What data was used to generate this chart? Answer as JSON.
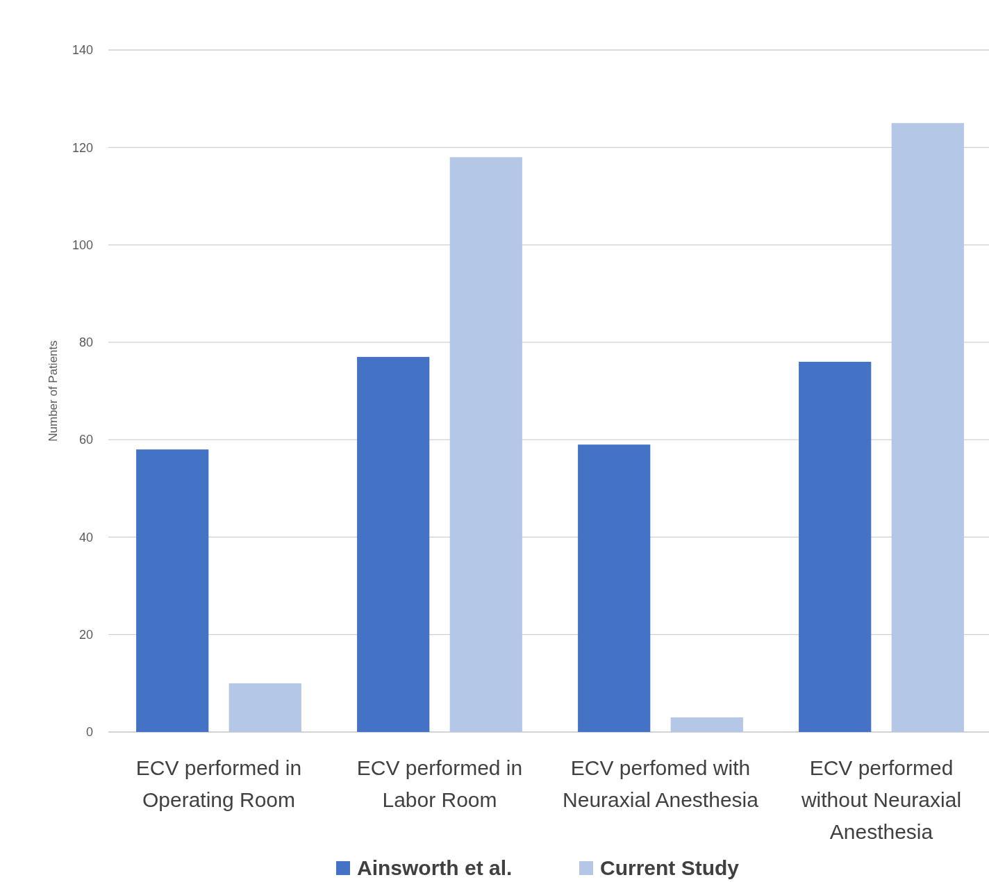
{
  "chart_data": {
    "type": "bar",
    "ylabel": "Number of Patients",
    "categories": [
      "ECV performed in Operating Room",
      "ECV performed in Labor Room",
      "ECV perfomed with Neuraxial Anesthesia",
      "ECV performed without Neuraxial Anesthesia"
    ],
    "series": [
      {
        "name": "Ainsworth et al.",
        "color": "#4472c4",
        "values": [
          58,
          77,
          59,
          76
        ]
      },
      {
        "name": "Current Study",
        "color": "#b4c7e7",
        "values": [
          10,
          118,
          3,
          125
        ]
      }
    ],
    "ylim": [
      0,
      140
    ],
    "yticks": [
      0,
      20,
      40,
      60,
      80,
      100,
      120,
      140
    ],
    "grid": "y",
    "legend": "bottom"
  }
}
